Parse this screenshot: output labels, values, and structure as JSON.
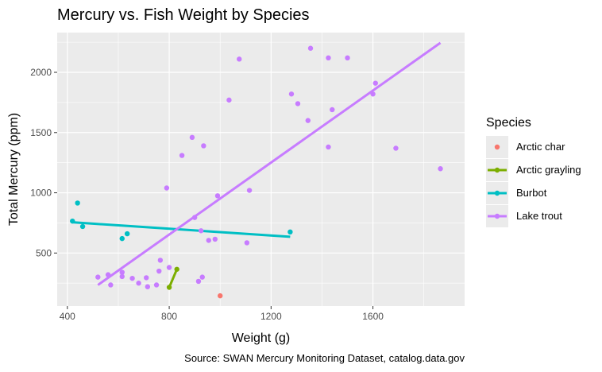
{
  "chart_data": {
    "type": "scatter",
    "title": "Mercury vs. Fish Weight by Species",
    "xlabel": "Weight (g)",
    "ylabel": "Total Mercury (ppm)",
    "caption": "Source: SWAN Mercury Monitoring Dataset, catalog.data.gov",
    "xlim": [
      360,
      1960
    ],
    "ylim": [
      60,
      2330
    ],
    "xticks": [
      400,
      800,
      1200,
      1600
    ],
    "yticks": [
      500,
      1000,
      1500,
      2000
    ],
    "grid": true,
    "legend_position": "right",
    "legend_title": "Species",
    "series": [
      {
        "name": "Arctic char",
        "color": "#F8766D",
        "points": [
          [
            1000,
            145
          ]
        ],
        "trend": null
      },
      {
        "name": "Arctic grayling",
        "color": "#7CAE00",
        "points": [
          [
            800,
            215
          ],
          [
            830,
            365
          ]
        ],
        "trend": [
          [
            800,
            215
          ],
          [
            830,
            365
          ]
        ]
      },
      {
        "name": "Burbot",
        "color": "#00BFC4",
        "points": [
          [
            420,
            765
          ],
          [
            440,
            915
          ],
          [
            460,
            720
          ],
          [
            615,
            620
          ],
          [
            635,
            660
          ],
          [
            1275,
            675
          ]
        ],
        "trend": [
          [
            420,
            755
          ],
          [
            1275,
            635
          ]
        ]
      },
      {
        "name": "Lake trout",
        "color": "#C77CFF",
        "points": [
          [
            520,
            300
          ],
          [
            560,
            320
          ],
          [
            570,
            235
          ],
          [
            615,
            340
          ],
          [
            615,
            305
          ],
          [
            655,
            290
          ],
          [
            680,
            250
          ],
          [
            710,
            295
          ],
          [
            715,
            220
          ],
          [
            750,
            235
          ],
          [
            760,
            350
          ],
          [
            765,
            440
          ],
          [
            790,
            1040
          ],
          [
            800,
            380
          ],
          [
            850,
            1310
          ],
          [
            890,
            1460
          ],
          [
            900,
            795
          ],
          [
            915,
            265
          ],
          [
            925,
            685
          ],
          [
            930,
            300
          ],
          [
            935,
            1390
          ],
          [
            955,
            605
          ],
          [
            980,
            615
          ],
          [
            990,
            975
          ],
          [
            1075,
            2110
          ],
          [
            1035,
            1770
          ],
          [
            1105,
            585
          ],
          [
            1115,
            1020
          ],
          [
            1280,
            1820
          ],
          [
            1305,
            1740
          ],
          [
            1345,
            1600
          ],
          [
            1355,
            2200
          ],
          [
            1425,
            2120
          ],
          [
            1425,
            1380
          ],
          [
            1440,
            1690
          ],
          [
            1500,
            2120
          ],
          [
            1600,
            1820
          ],
          [
            1610,
            1910
          ],
          [
            1690,
            1370
          ],
          [
            1865,
            1200
          ]
        ],
        "trend": [
          [
            520,
            235
          ],
          [
            1865,
            2245
          ]
        ]
      }
    ]
  }
}
